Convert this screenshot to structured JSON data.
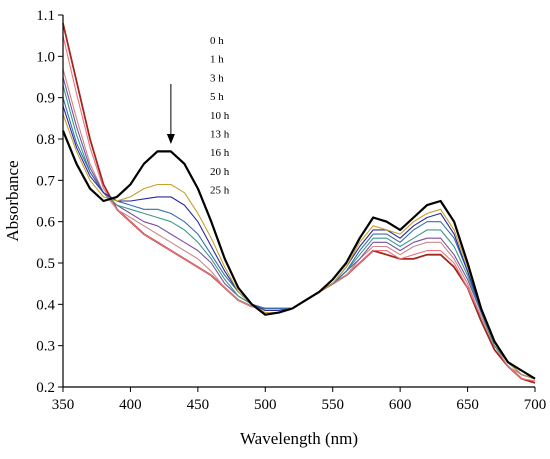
{
  "chart_data": {
    "type": "line",
    "title": "",
    "xlabel": "Wavelength (nm)",
    "ylabel": "Absorbance",
    "xlim": [
      350,
      700
    ],
    "ylim": [
      0.2,
      1.1
    ],
    "xticks": [
      350,
      400,
      450,
      500,
      550,
      600,
      650,
      700
    ],
    "yticks": [
      0.2,
      0.3,
      0.4,
      0.5,
      0.6,
      0.7,
      0.8,
      0.9,
      1.0,
      1.1
    ],
    "grid": false,
    "legend_position": "top-center",
    "annotation": "downward arrow above the 430 nm band",
    "series": [
      {
        "name": "0 h",
        "color": "#000000",
        "x": [
          350,
          360,
          370,
          380,
          390,
          400,
          410,
          420,
          430,
          440,
          450,
          460,
          470,
          480,
          490,
          500,
          510,
          520,
          530,
          540,
          550,
          560,
          570,
          580,
          590,
          600,
          610,
          620,
          630,
          640,
          650,
          660,
          670,
          680,
          690,
          700
        ],
        "y": [
          0.82,
          0.74,
          0.68,
          0.65,
          0.66,
          0.69,
          0.74,
          0.77,
          0.77,
          0.74,
          0.68,
          0.6,
          0.51,
          0.44,
          0.4,
          0.375,
          0.38,
          0.39,
          0.41,
          0.43,
          0.46,
          0.5,
          0.56,
          0.61,
          0.6,
          0.58,
          0.61,
          0.64,
          0.65,
          0.6,
          0.5,
          0.39,
          0.31,
          0.26,
          0.24,
          0.22
        ]
      },
      {
        "name": "1 h",
        "color": "#c8a02a",
        "x": [
          350,
          360,
          370,
          380,
          390,
          400,
          410,
          420,
          430,
          440,
          450,
          460,
          470,
          480,
          490,
          500,
          510,
          520,
          530,
          540,
          550,
          560,
          570,
          580,
          590,
          600,
          610,
          620,
          630,
          640,
          650,
          660,
          670,
          680,
          690,
          700
        ],
        "y": [
          0.86,
          0.77,
          0.7,
          0.66,
          0.65,
          0.66,
          0.68,
          0.69,
          0.69,
          0.67,
          0.62,
          0.56,
          0.49,
          0.43,
          0.4,
          0.38,
          0.38,
          0.39,
          0.41,
          0.43,
          0.45,
          0.49,
          0.55,
          0.59,
          0.58,
          0.57,
          0.6,
          0.62,
          0.63,
          0.58,
          0.49,
          0.39,
          0.31,
          0.26,
          0.23,
          0.22
        ]
      },
      {
        "name": "3 h",
        "color": "#2a2a9e",
        "x": [
          350,
          360,
          370,
          380,
          390,
          400,
          410,
          420,
          430,
          440,
          450,
          460,
          470,
          480,
          490,
          500,
          510,
          520,
          530,
          540,
          550,
          560,
          570,
          580,
          590,
          600,
          610,
          620,
          630,
          640,
          650,
          660,
          670,
          680,
          690,
          700
        ],
        "y": [
          0.88,
          0.78,
          0.71,
          0.67,
          0.65,
          0.65,
          0.655,
          0.66,
          0.66,
          0.64,
          0.6,
          0.54,
          0.48,
          0.43,
          0.4,
          0.385,
          0.385,
          0.39,
          0.41,
          0.43,
          0.45,
          0.49,
          0.54,
          0.58,
          0.58,
          0.56,
          0.59,
          0.61,
          0.62,
          0.57,
          0.48,
          0.39,
          0.31,
          0.26,
          0.23,
          0.22
        ]
      },
      {
        "name": "5 h",
        "color": "#3a6fb0",
        "x": [
          350,
          360,
          370,
          380,
          390,
          400,
          410,
          420,
          430,
          440,
          450,
          460,
          470,
          480,
          490,
          500,
          510,
          520,
          530,
          540,
          550,
          560,
          570,
          580,
          590,
          600,
          610,
          620,
          630,
          640,
          650,
          660,
          670,
          680,
          690,
          700
        ],
        "y": [
          0.9,
          0.79,
          0.72,
          0.67,
          0.65,
          0.64,
          0.63,
          0.63,
          0.62,
          0.6,
          0.57,
          0.52,
          0.47,
          0.43,
          0.4,
          0.39,
          0.39,
          0.39,
          0.41,
          0.43,
          0.45,
          0.48,
          0.53,
          0.57,
          0.57,
          0.55,
          0.58,
          0.6,
          0.6,
          0.56,
          0.48,
          0.38,
          0.31,
          0.26,
          0.23,
          0.22
        ]
      },
      {
        "name": "10 h",
        "color": "#3a9a8a",
        "x": [
          350,
          360,
          370,
          380,
          390,
          400,
          410,
          420,
          430,
          440,
          450,
          460,
          470,
          480,
          490,
          500,
          510,
          520,
          530,
          540,
          550,
          560,
          570,
          580,
          590,
          600,
          610,
          620,
          630,
          640,
          650,
          660,
          670,
          680,
          690,
          700
        ],
        "y": [
          0.93,
          0.81,
          0.72,
          0.67,
          0.64,
          0.63,
          0.62,
          0.61,
          0.6,
          0.58,
          0.55,
          0.51,
          0.46,
          0.42,
          0.4,
          0.39,
          0.39,
          0.39,
          0.41,
          0.43,
          0.45,
          0.48,
          0.52,
          0.56,
          0.56,
          0.54,
          0.56,
          0.58,
          0.58,
          0.54,
          0.47,
          0.38,
          0.3,
          0.26,
          0.23,
          0.22
        ]
      },
      {
        "name": "13 h",
        "color": "#7a4fa0",
        "x": [
          350,
          360,
          370,
          380,
          390,
          400,
          410,
          420,
          430,
          440,
          450,
          460,
          470,
          480,
          490,
          500,
          510,
          520,
          530,
          540,
          550,
          560,
          570,
          580,
          590,
          600,
          610,
          620,
          630,
          640,
          650,
          660,
          670,
          680,
          690,
          700
        ],
        "y": [
          0.95,
          0.83,
          0.73,
          0.67,
          0.64,
          0.62,
          0.6,
          0.59,
          0.57,
          0.55,
          0.53,
          0.5,
          0.45,
          0.42,
          0.4,
          0.39,
          0.39,
          0.39,
          0.41,
          0.43,
          0.45,
          0.48,
          0.51,
          0.55,
          0.55,
          0.53,
          0.55,
          0.56,
          0.56,
          0.52,
          0.46,
          0.38,
          0.3,
          0.26,
          0.23,
          0.22
        ]
      },
      {
        "name": "16 h",
        "color": "#c98a8a",
        "x": [
          350,
          360,
          370,
          380,
          390,
          400,
          410,
          420,
          430,
          440,
          450,
          460,
          470,
          480,
          490,
          500,
          510,
          520,
          530,
          540,
          550,
          560,
          570,
          580,
          590,
          600,
          610,
          620,
          630,
          640,
          650,
          660,
          670,
          680,
          690,
          700
        ],
        "y": [
          0.97,
          0.85,
          0.74,
          0.67,
          0.63,
          0.61,
          0.59,
          0.57,
          0.55,
          0.53,
          0.51,
          0.48,
          0.44,
          0.41,
          0.395,
          0.39,
          0.39,
          0.39,
          0.41,
          0.43,
          0.45,
          0.47,
          0.51,
          0.54,
          0.54,
          0.52,
          0.54,
          0.55,
          0.55,
          0.51,
          0.45,
          0.37,
          0.3,
          0.25,
          0.23,
          0.22
        ]
      },
      {
        "name": "20 h",
        "color": "#f07080",
        "x": [
          350,
          360,
          370,
          380,
          390,
          400,
          410,
          420,
          430,
          440,
          450,
          460,
          470,
          480,
          490,
          500,
          510,
          520,
          530,
          540,
          550,
          560,
          570,
          580,
          590,
          600,
          610,
          620,
          630,
          640,
          650,
          660,
          670,
          680,
          690,
          700
        ],
        "y": [
          1.05,
          0.91,
          0.78,
          0.68,
          0.63,
          0.6,
          0.57,
          0.55,
          0.53,
          0.51,
          0.49,
          0.47,
          0.44,
          0.41,
          0.395,
          0.39,
          0.39,
          0.39,
          0.41,
          0.43,
          0.45,
          0.47,
          0.5,
          0.53,
          0.53,
          0.51,
          0.52,
          0.53,
          0.53,
          0.5,
          0.44,
          0.37,
          0.3,
          0.25,
          0.22,
          0.215
        ]
      },
      {
        "name": "25 h",
        "color": "#a0281e",
        "x": [
          350,
          360,
          370,
          380,
          390,
          400,
          410,
          420,
          430,
          440,
          450,
          460,
          470,
          480,
          490,
          500,
          510,
          520,
          530,
          540,
          550,
          560,
          570,
          580,
          590,
          600,
          610,
          620,
          630,
          640,
          650,
          660,
          670,
          680,
          690,
          700
        ],
        "y": [
          1.08,
          0.94,
          0.8,
          0.69,
          0.63,
          0.6,
          0.57,
          0.55,
          0.53,
          0.51,
          0.49,
          0.47,
          0.44,
          0.41,
          0.395,
          0.39,
          0.39,
          0.39,
          0.41,
          0.43,
          0.45,
          0.47,
          0.5,
          0.53,
          0.52,
          0.51,
          0.51,
          0.52,
          0.52,
          0.49,
          0.44,
          0.36,
          0.29,
          0.25,
          0.22,
          0.21
        ]
      }
    ]
  }
}
